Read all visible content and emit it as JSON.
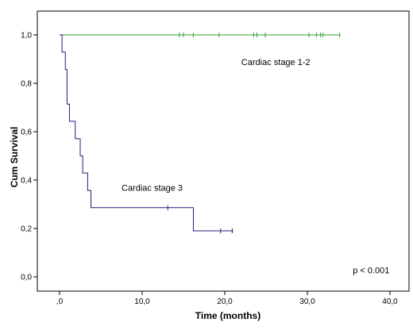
{
  "chart_data": {
    "type": "line",
    "subtype": "kaplan-meier-step",
    "xlabel": "Time (months)",
    "ylabel": "Cum Survival",
    "xlim": [
      0,
      40
    ],
    "ylim": [
      0,
      1
    ],
    "x_ticks": [
      0,
      10,
      20,
      30,
      40
    ],
    "x_tick_labels": [
      ",0",
      "10,0",
      "20,0",
      "30,0",
      "40,0"
    ],
    "y_ticks": [
      0,
      0.2,
      0.4,
      0.6,
      0.8,
      1.0
    ],
    "y_tick_labels": [
      "0,0",
      "0,2",
      "0,4",
      "0,6",
      "0,8",
      "1,0"
    ],
    "grid": false,
    "legend": "none",
    "series": [
      {
        "label": "Cardiac stage 1-2",
        "color": "#2ca02c",
        "steps": [
          [
            0.0,
            1.0
          ],
          [
            34.0,
            1.0
          ]
        ],
        "censored": [
          [
            14.5,
            1.0
          ],
          [
            15.0,
            1.0
          ],
          [
            16.2,
            1.0
          ],
          [
            19.3,
            1.0
          ],
          [
            23.5,
            1.0
          ],
          [
            23.9,
            1.0
          ],
          [
            24.9,
            1.0
          ],
          [
            30.2,
            1.0
          ],
          [
            31.1,
            1.0
          ],
          [
            31.6,
            1.0
          ],
          [
            31.9,
            1.0
          ],
          [
            33.9,
            1.0
          ]
        ]
      },
      {
        "label": "Cardiac stage 3",
        "color": "#1f1f7a",
        "steps": [
          [
            0.0,
            1.0
          ],
          [
            0.3,
            0.929
          ],
          [
            0.7,
            0.857
          ],
          [
            0.9,
            0.714
          ],
          [
            1.2,
            0.643
          ],
          [
            1.9,
            0.571
          ],
          [
            2.5,
            0.5
          ],
          [
            2.8,
            0.429
          ],
          [
            3.4,
            0.357
          ],
          [
            3.8,
            0.286
          ],
          [
            16.2,
            0.19
          ],
          [
            21.0,
            0.19
          ]
        ],
        "censored": [
          [
            13.1,
            0.286
          ],
          [
            19.5,
            0.19
          ],
          [
            20.9,
            0.19
          ]
        ]
      }
    ],
    "annotations": [
      {
        "text": "Cardiac stage 1-2",
        "x": 22,
        "y": 0.875
      },
      {
        "text": "Cardiac stage 3",
        "x": 7.5,
        "y": 0.355
      },
      {
        "text": "p < 0.001",
        "x": 35.5,
        "y": 0.015
      }
    ]
  }
}
